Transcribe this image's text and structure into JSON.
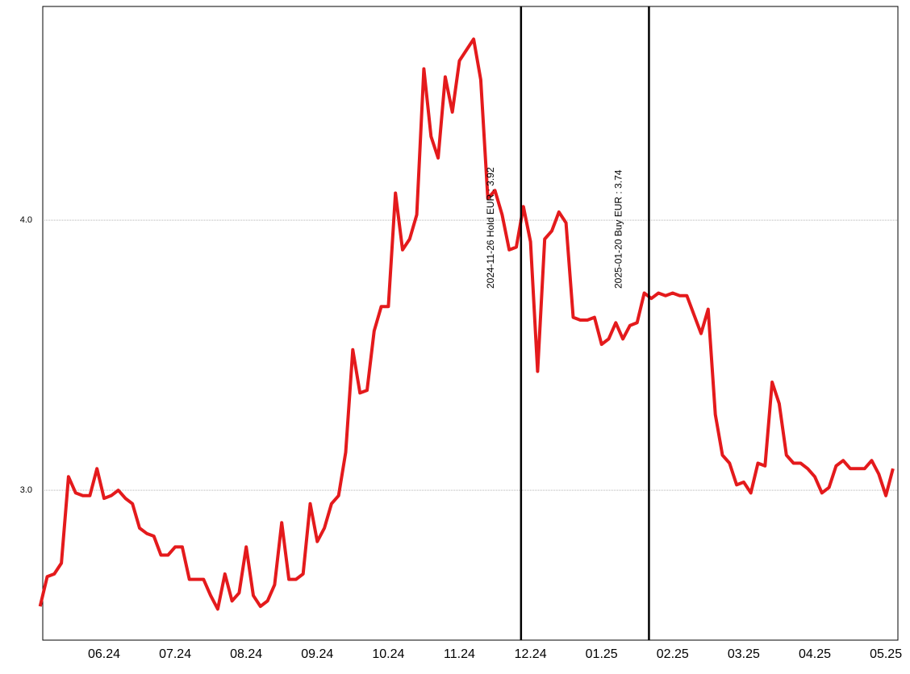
{
  "chart_data": {
    "type": "line",
    "categories": [
      null,
      null,
      null,
      null,
      null,
      null,
      null,
      null,
      null,
      "06.24",
      null,
      null,
      null,
      null,
      null,
      null,
      null,
      null,
      null,
      "07.24",
      null,
      null,
      null,
      null,
      null,
      null,
      null,
      null,
      null,
      "08.24",
      null,
      null,
      null,
      null,
      null,
      null,
      null,
      null,
      null,
      "09.24",
      null,
      null,
      null,
      null,
      null,
      null,
      null,
      null,
      null,
      "10.24",
      null,
      null,
      null,
      null,
      null,
      null,
      null,
      null,
      null,
      "11.24",
      null,
      null,
      null,
      null,
      null,
      null,
      null,
      null,
      null,
      "12.24",
      null,
      null,
      null,
      null,
      null,
      null,
      null,
      null,
      null,
      "01.25",
      null,
      null,
      null,
      null,
      null,
      null,
      null,
      null,
      null,
      "02.25",
      null,
      null,
      null,
      null,
      null,
      null,
      null,
      null,
      null,
      "03.25",
      null,
      null,
      null,
      null,
      null,
      null,
      null,
      null,
      null,
      "04.25",
      null,
      null,
      null,
      null,
      null,
      null,
      null,
      null,
      null,
      "05.25",
      null
    ],
    "series": [
      {
        "color": "#e41a1c",
        "values": [
          2.57,
          2.68,
          2.69,
          2.73,
          3.05,
          2.99,
          2.98,
          2.98,
          3.08,
          2.97,
          2.98,
          3.0,
          2.97,
          2.95,
          2.86,
          2.84,
          2.83,
          2.76,
          2.76,
          2.79,
          2.79,
          2.67,
          2.67,
          2.67,
          2.61,
          2.56,
          2.69,
          2.59,
          2.62,
          2.79,
          2.61,
          2.57,
          2.59,
          2.65,
          2.88,
          2.67,
          2.67,
          2.69,
          2.95,
          2.81,
          2.86,
          2.95,
          2.98,
          3.14,
          3.52,
          3.36,
          3.37,
          3.59,
          3.68,
          3.68,
          4.1,
          3.89,
          3.93,
          4.02,
          4.56,
          4.31,
          4.23,
          4.53,
          4.4,
          4.59,
          4.63,
          4.67,
          4.52,
          4.08,
          4.11,
          4.02,
          3.89,
          3.9,
          4.05,
          3.92,
          3.44,
          3.93,
          3.96,
          4.03,
          3.99,
          3.64,
          3.63,
          3.63,
          3.64,
          3.54,
          3.56,
          3.62,
          3.56,
          3.61,
          3.62,
          3.73,
          3.71,
          3.73,
          3.72,
          3.73,
          3.72,
          3.72,
          3.65,
          3.58,
          3.67,
          3.28,
          3.13,
          3.1,
          3.02,
          3.03,
          2.99,
          3.1,
          3.09,
          3.4,
          3.32,
          3.13,
          3.1,
          3.1,
          3.08,
          3.05,
          2.99,
          3.01,
          3.09,
          3.11,
          3.08,
          3.08,
          3.08,
          3.11,
          3.06,
          2.98,
          3.08
        ]
      }
    ],
    "ylim": [
      2.445,
      4.791
    ],
    "yticks": [
      {
        "value": 3,
        "label": "3.0"
      },
      {
        "value": 4,
        "label": "4.0"
      }
    ],
    "grid": true,
    "annotations": [
      {
        "text": "2024-11-26 Hold EUR : 3.92"
      },
      {
        "text": "2025-01-20 Buy EUR : 3.74"
      }
    ]
  }
}
